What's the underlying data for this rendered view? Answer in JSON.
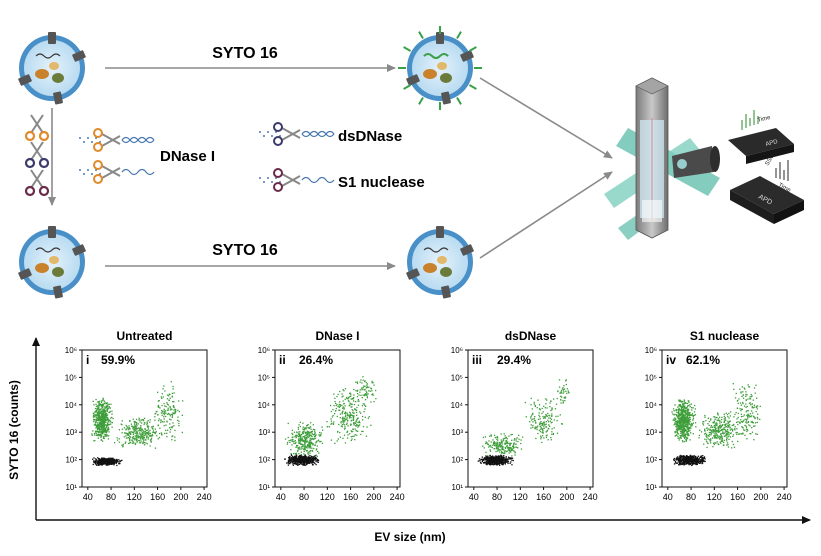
{
  "workflow": {
    "stain_label_top": "SYTO 16",
    "stain_label_bottom": "SYTO 16",
    "enzyme_main": "DNase I",
    "enzyme_ds": "dsDNase",
    "enzyme_s1": "S1 nuclease",
    "instrument": {
      "detector_top_label": "APD",
      "detector_bottom_label": "APD",
      "trace_top_label": "Time",
      "trace_bottom_label": "Time",
      "ssc_label": "SSC"
    }
  },
  "figure": {
    "ylabel": "SYTO 16 (counts)",
    "xlabel": "EV size (nm)"
  },
  "colors": {
    "positive": "#3e9e3a",
    "negative": "#111111",
    "arrow": "#8a8a8a",
    "ev_membrane": "#4a90c8",
    "ev_lumen": "#cfe6f5"
  },
  "chart_data": [
    {
      "type": "scatter",
      "title": "Untreated",
      "panel_label": "i",
      "percent_label": "59.9%",
      "xlim": [
        30,
        245
      ],
      "ylim": [
        10,
        1000000
      ],
      "yscale": "log",
      "xticks": [
        "40",
        "80",
        "120",
        "160",
        "200",
        "240"
      ],
      "yticks": [
        "10¹",
        "10²",
        "10³",
        "10⁴",
        "10⁵",
        "10⁶"
      ],
      "series": [
        {
          "legend": "positive",
          "color": "#3e9e3a",
          "clusters": [
            {
              "n": 520,
              "x": [
                42,
                85
              ],
              "logy": [
                2.6,
                4.3
              ]
            },
            {
              "n": 280,
              "x": [
                80,
                170
              ],
              "logy": [
                2.4,
                3.6
              ]
            },
            {
              "n": 150,
              "x": [
                140,
                210
              ],
              "logy": [
                2.6,
                4.9
              ]
            }
          ]
        },
        {
          "legend": "negative",
          "color": "#111111",
          "clusters": [
            {
              "n": 450,
              "x": [
                42,
                100
              ],
              "logy": [
                1.8,
                2.1
              ]
            }
          ]
        }
      ]
    },
    {
      "type": "scatter",
      "title": "DNase I",
      "panel_label": "ii",
      "percent_label": "26.4%",
      "xlim": [
        30,
        245
      ],
      "ylim": [
        10,
        1000000
      ],
      "yscale": "log",
      "xticks": [
        "40",
        "80",
        "120",
        "160",
        "200",
        "240"
      ],
      "yticks": [
        "10¹",
        "10²",
        "10³",
        "10⁴",
        "10⁵",
        "10⁶"
      ],
      "series": [
        {
          "legend": "positive",
          "color": "#3e9e3a",
          "clusters": [
            {
              "n": 320,
              "x": [
                45,
                120
              ],
              "logy": [
                2.1,
                3.4
              ]
            },
            {
              "n": 260,
              "x": [
                110,
                200
              ],
              "logy": [
                2.6,
                4.7
              ]
            },
            {
              "n": 60,
              "x": [
                150,
                215
              ],
              "logy": [
                4.0,
                5.1
              ]
            }
          ]
        },
        {
          "legend": "negative",
          "color": "#111111",
          "clusters": [
            {
              "n": 500,
              "x": [
                42,
                110
              ],
              "logy": [
                1.8,
                2.2
              ]
            }
          ]
        }
      ]
    },
    {
      "type": "scatter",
      "title": "dsDNase",
      "panel_label": "iii",
      "percent_label": "29.4%",
      "xlim": [
        30,
        245
      ],
      "ylim": [
        10,
        1000000
      ],
      "yscale": "log",
      "xticks": [
        "40",
        "80",
        "120",
        "160",
        "200",
        "240"
      ],
      "yticks": [
        "10¹",
        "10²",
        "10³",
        "10⁴",
        "10⁵",
        "10⁶"
      ],
      "series": [
        {
          "legend": "positive",
          "color": "#3e9e3a",
          "clusters": [
            {
              "n": 200,
              "x": [
                45,
                130
              ],
              "logy": [
                2.1,
                3.0
              ]
            },
            {
              "n": 160,
              "x": [
                120,
                200
              ],
              "logy": [
                2.6,
                4.3
              ]
            },
            {
              "n": 40,
              "x": [
                180,
                210
              ],
              "logy": [
                4.0,
                5.0
              ]
            }
          ]
        },
        {
          "legend": "negative",
          "color": "#111111",
          "clusters": [
            {
              "n": 480,
              "x": [
                42,
                110
              ],
              "logy": [
                1.8,
                2.2
              ]
            }
          ]
        }
      ]
    },
    {
      "type": "scatter",
      "title": "S1 nuclease",
      "panel_label": "iv",
      "percent_label": "62.1%",
      "xlim": [
        30,
        245
      ],
      "ylim": [
        10,
        1000000
      ],
      "yscale": "log",
      "xticks": [
        "40",
        "80",
        "120",
        "160",
        "200",
        "240"
      ],
      "yticks": [
        "10¹",
        "10²",
        "10³",
        "10⁴",
        "10⁵",
        "10⁶"
      ],
      "series": [
        {
          "legend": "positive",
          "color": "#3e9e3a",
          "clusters": [
            {
              "n": 560,
              "x": [
                42,
                90
              ],
              "logy": [
                2.6,
                4.3
              ]
            },
            {
              "n": 300,
              "x": [
                80,
                175
              ],
              "logy": [
                2.4,
                3.8
              ]
            },
            {
              "n": 160,
              "x": [
                140,
                210
              ],
              "logy": [
                2.6,
                4.9
              ]
            }
          ]
        },
        {
          "legend": "negative",
          "color": "#111111",
          "clusters": [
            {
              "n": 480,
              "x": [
                42,
                110
              ],
              "logy": [
                1.8,
                2.2
              ]
            }
          ]
        }
      ]
    }
  ]
}
